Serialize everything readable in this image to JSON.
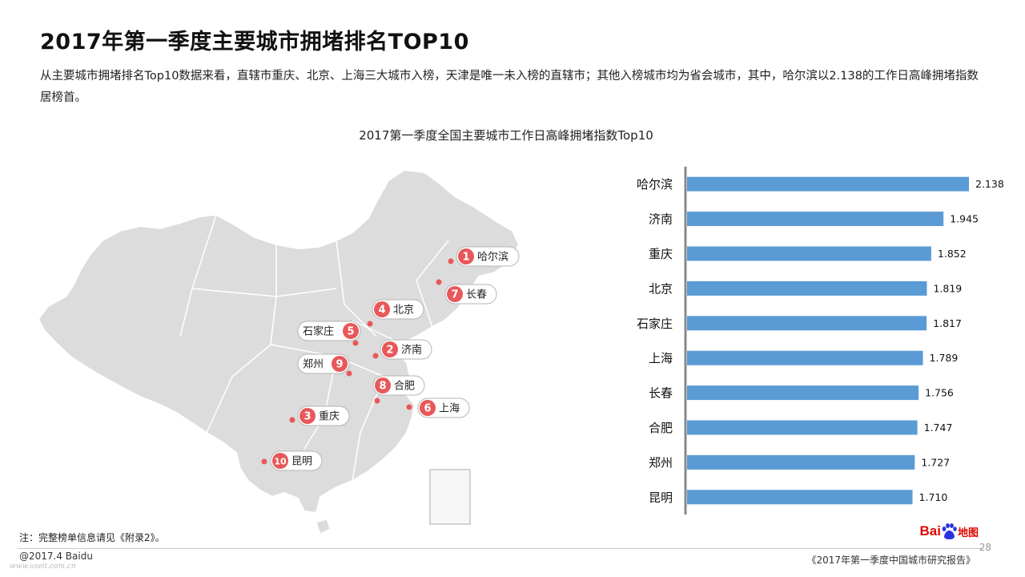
{
  "page": {
    "title": "2017年第一季度主要城市拥堵排名TOP10",
    "intro": "从主要城市拥堵排名Top10数据来看，直辖市重庆、北京、上海三大城市入榜，天津是唯一未入榜的直辖市；其他入榜城市均为省会城市，其中，哈尔滨以2.138的工作日高峰拥堵指数居榜首。",
    "footnote": "注：完整榜单信息请见《附录2》。",
    "copyright": "@2017.4 Baidu",
    "watermark": "www.useit.com.cn",
    "report_name": "《2017年第一季度中国城市研究报告》",
    "page_number": "28",
    "logo": {
      "bai": "Bai",
      "du": "du",
      "map": "地图"
    }
  },
  "colors": {
    "bar": "#5b9bd5",
    "marker": "#e8585a",
    "map_fill": "#dcdcdc",
    "map_border": "#ffffff",
    "axis": "#888888"
  },
  "map": {
    "cities": [
      {
        "rank": "1",
        "name": "哈尔滨",
        "label_side": "right"
      },
      {
        "rank": "7",
        "name": "长春",
        "label_side": "right"
      },
      {
        "rank": "4",
        "name": "北京",
        "label_side": "right"
      },
      {
        "rank": "5",
        "name": "石家庄",
        "label_side": "left"
      },
      {
        "rank": "2",
        "name": "济南",
        "label_side": "right"
      },
      {
        "rank": "9",
        "name": "郑州",
        "label_side": "left"
      },
      {
        "rank": "8",
        "name": "合肥",
        "label_side": "right"
      },
      {
        "rank": "6",
        "name": "上海",
        "label_side": "right"
      },
      {
        "rank": "3",
        "name": "重庆",
        "label_side": "right"
      },
      {
        "rank": "10",
        "name": "昆明",
        "label_side": "right"
      }
    ]
  },
  "chart_data": {
    "type": "bar",
    "orientation": "horizontal",
    "title": "2017第一季度全国主要城市工作日高峰拥堵指数Top10",
    "categories": [
      "哈尔滨",
      "济南",
      "重庆",
      "北京",
      "石家庄",
      "上海",
      "长春",
      "合肥",
      "郑州",
      "昆明"
    ],
    "values": [
      2.138,
      1.945,
      1.852,
      1.819,
      1.817,
      1.789,
      1.756,
      1.747,
      1.727,
      1.71
    ],
    "value_labels": [
      "2.138",
      "1.945",
      "1.852",
      "1.819",
      "1.817",
      "1.789",
      "1.756",
      "1.747",
      "1.727",
      "1.710"
    ],
    "xlim": [
      0,
      2.138
    ],
    "grid": false,
    "legend": "none"
  }
}
